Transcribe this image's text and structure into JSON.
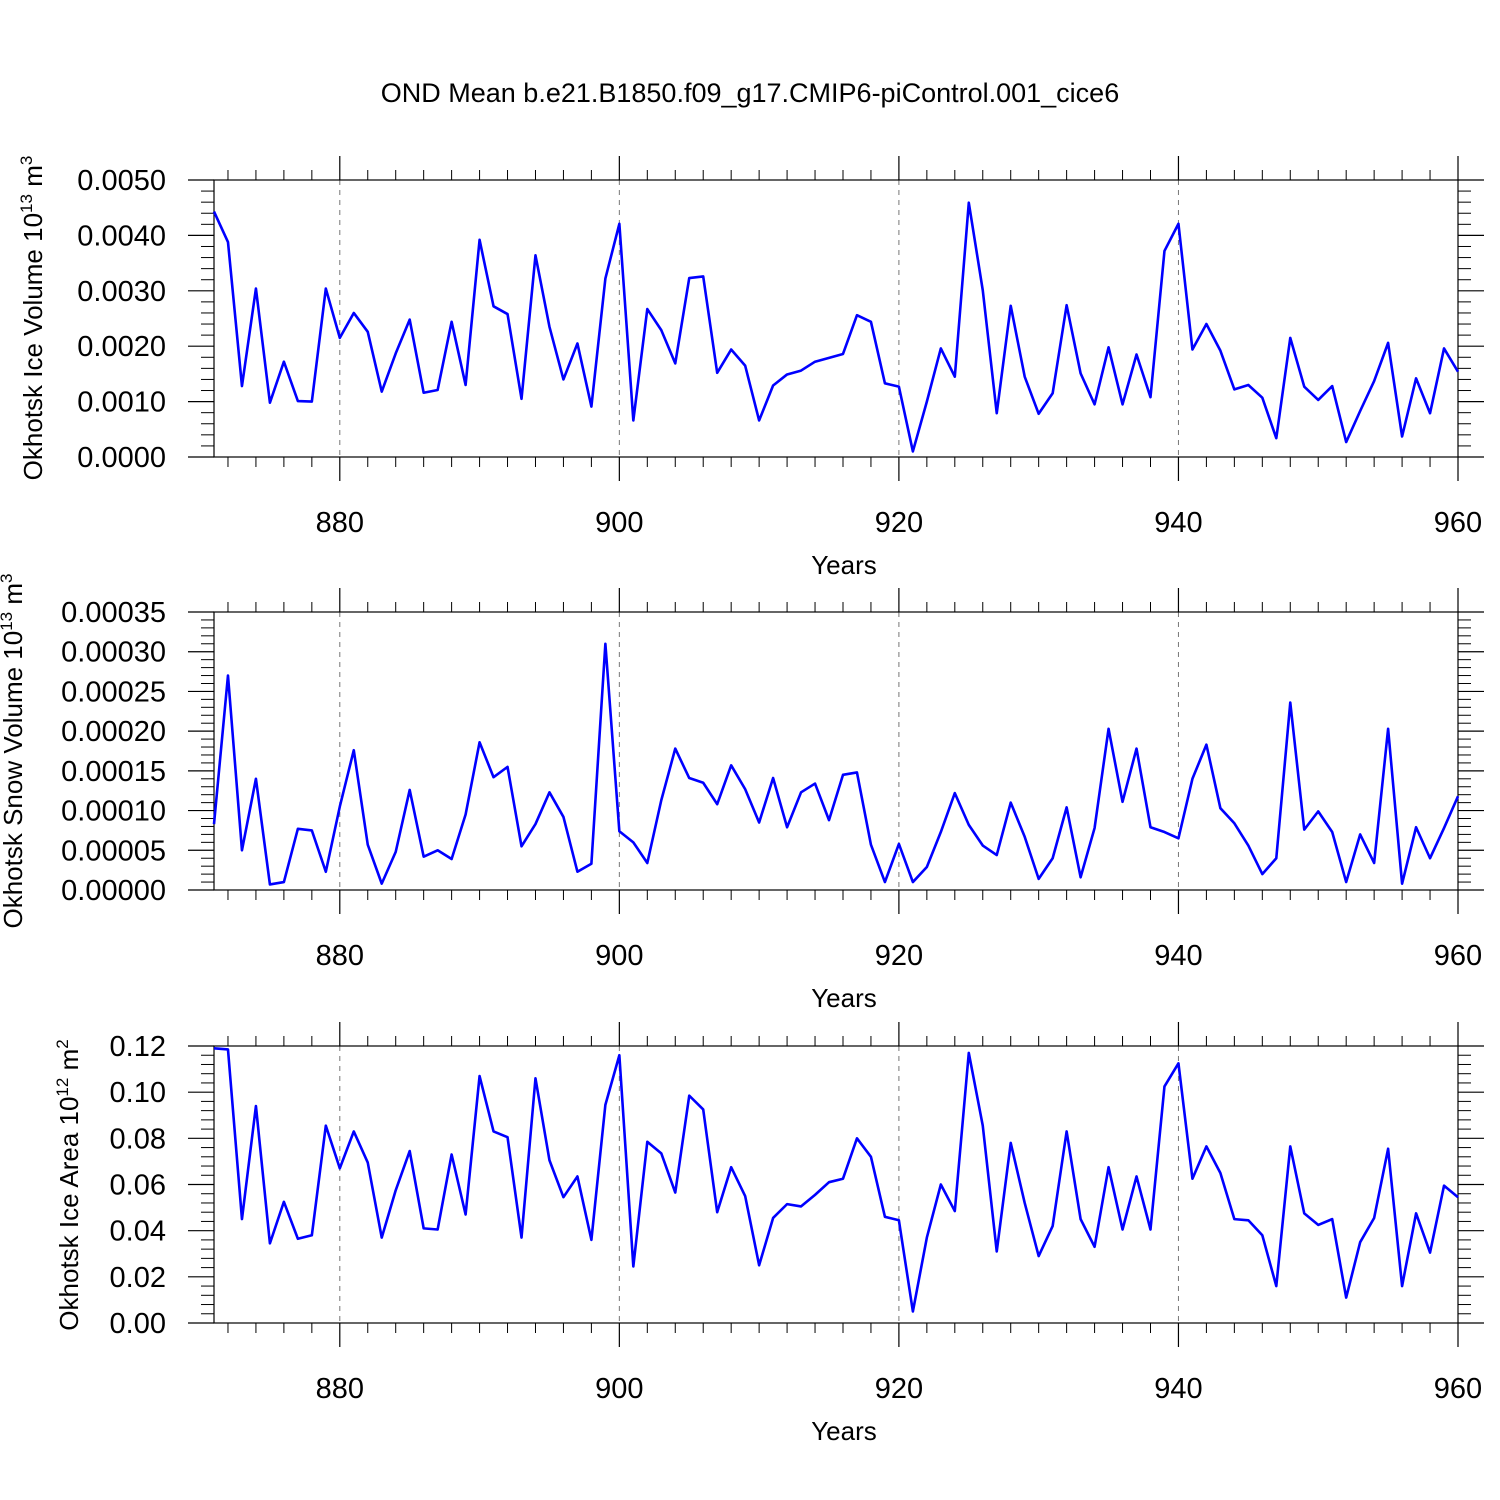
{
  "title": "OND Mean b.e21.B1850.f09_g17.CMIP6-piControl.001_cice6",
  "line_color": "#0000ff",
  "chart_data": [
    {
      "type": "line",
      "name": "ice-volume",
      "ylabel_main": "Okhotsk Ice Volume 10",
      "ylabel_exp": "13",
      "ylabel_unit": "m",
      "ylabel_unit_exp": "3",
      "xlabel": "Years",
      "xlim": [
        871,
        960
      ],
      "ylim": [
        0,
        0.005
      ],
      "xticks": [
        880,
        900,
        920,
        940,
        960
      ],
      "xtick_labels": [
        "880",
        "900",
        "920",
        "940",
        "960"
      ],
      "yticks": [
        0,
        0.001,
        0.002,
        0.003,
        0.004,
        0.005
      ],
      "ytick_labels": [
        "0.0000",
        "0.0010",
        "0.0020",
        "0.0030",
        "0.0040",
        "0.0050"
      ],
      "x_start": 871,
      "values": [
        0.00443,
        0.00388,
        0.00128,
        0.00304,
        0.00098,
        0.00172,
        0.00101,
        0.001,
        0.00304,
        0.00215,
        0.0026,
        0.00226,
        0.00118,
        0.00187,
        0.00248,
        0.00116,
        0.00121,
        0.00244,
        0.0013,
        0.00392,
        0.00272,
        0.00258,
        0.00105,
        0.00364,
        0.00235,
        0.0014,
        0.00205,
        0.00091,
        0.00322,
        0.00421,
        0.00066,
        0.00267,
        0.00229,
        0.00169,
        0.00323,
        0.00326,
        0.00152,
        0.00194,
        0.00165,
        0.00066,
        0.00129,
        0.00149,
        0.00156,
        0.00172,
        0.00179,
        0.00186,
        0.00256,
        0.00244,
        0.00133,
        0.00127,
        0.0001,
        0.001,
        0.00196,
        0.00145,
        0.00459,
        0.00301,
        0.00079,
        0.00273,
        0.00145,
        0.00078,
        0.00115,
        0.00274,
        0.00151,
        0.00095,
        0.00198,
        0.00095,
        0.00185,
        0.00108,
        0.00372,
        0.00421,
        0.00194,
        0.0024,
        0.00192,
        0.00122,
        0.0013,
        0.00107,
        0.00034,
        0.00215,
        0.00127,
        0.00103,
        0.00128,
        0.00027,
        0.00083,
        0.00137,
        0.00206,
        0.00037,
        0.00142,
        0.00079,
        0.00196,
        0.00154
      ]
    },
    {
      "type": "line",
      "name": "snow-volume",
      "ylabel_main": "Okhotsk Snow Volume 10",
      "ylabel_exp": "13",
      "ylabel_unit": "m",
      "ylabel_unit_exp": "3",
      "xlabel": "Years",
      "xlim": [
        871,
        960
      ],
      "ylim": [
        0,
        0.00035
      ],
      "xticks": [
        880,
        900,
        920,
        940,
        960
      ],
      "xtick_labels": [
        "880",
        "900",
        "920",
        "940",
        "960"
      ],
      "yticks": [
        0,
        5e-05,
        0.0001,
        0.00015,
        0.0002,
        0.00025,
        0.0003,
        0.00035
      ],
      "ytick_labels": [
        "0.00000",
        "0.00005",
        "0.00010",
        "0.00015",
        "0.00020",
        "0.00025",
        "0.00030",
        "0.00035"
      ],
      "x_start": 871,
      "values": [
        8.3e-05,
        0.00027,
        5e-05,
        0.00014,
        7e-06,
        1e-05,
        7.7e-05,
        7.5e-05,
        2.3e-05,
        0.000105,
        0.000176,
        5.7e-05,
        8e-06,
        4.8e-05,
        0.000126,
        4.2e-05,
        5e-05,
        3.9e-05,
        9.5e-05,
        0.000186,
        0.000142,
        0.000155,
        5.5e-05,
        8.3e-05,
        0.000123,
        9.2e-05,
        2.3e-05,
        3.3e-05,
        0.00031,
        7.4e-05,
        6e-05,
        3.4e-05,
        0.000113,
        0.000178,
        0.000141,
        0.000135,
        0.000108,
        0.000157,
        0.000127,
        8.5e-05,
        0.000141,
        7.9e-05,
        0.000123,
        0.000134,
        8.8e-05,
        0.000145,
        0.000148,
        5.7e-05,
        1e-05,
        5.8e-05,
        1e-05,
        2.9e-05,
        7.3e-05,
        0.000122,
        8.2e-05,
        5.6e-05,
        4.4e-05,
        0.00011,
        6.7e-05,
        1.4e-05,
        4e-05,
        0.000104,
        1.6e-05,
        7.8e-05,
        0.000203,
        0.000111,
        0.000178,
        7.9e-05,
        7.3e-05,
        6.5e-05,
        0.00014,
        0.000183,
        0.000103,
        8.4e-05,
        5.6e-05,
        2e-05,
        4e-05,
        0.000236,
        7.6e-05,
        9.9e-05,
        7.3e-05,
        1e-05,
        7e-05,
        3.4e-05,
        0.000203,
        8e-06,
        7.9e-05,
        4e-05,
        7.8e-05,
        0.000118
      ]
    },
    {
      "type": "line",
      "name": "ice-area",
      "ylabel_main": "Okhotsk Ice Area 10",
      "ylabel_exp": "12",
      "ylabel_unit": "m",
      "ylabel_unit_exp": "2",
      "xlabel": "Years",
      "xlim": [
        871,
        960
      ],
      "ylim": [
        0,
        0.12
      ],
      "xticks": [
        880,
        900,
        920,
        940,
        960
      ],
      "xtick_labels": [
        "880",
        "900",
        "920",
        "940",
        "960"
      ],
      "yticks": [
        0,
        0.02,
        0.04,
        0.06,
        0.08,
        0.1,
        0.12
      ],
      "ytick_labels": [
        "0.00",
        "0.02",
        "0.04",
        "0.06",
        "0.08",
        "0.10",
        "0.12"
      ],
      "x_start": 871,
      "values": [
        0.119,
        0.1185,
        0.045,
        0.094,
        0.0345,
        0.0525,
        0.0365,
        0.038,
        0.0855,
        0.067,
        0.083,
        0.0695,
        0.037,
        0.0575,
        0.0745,
        0.041,
        0.0405,
        0.073,
        0.047,
        0.107,
        0.083,
        0.0805,
        0.037,
        0.106,
        0.0705,
        0.0545,
        0.0635,
        0.036,
        0.0945,
        0.116,
        0.0245,
        0.0785,
        0.0735,
        0.0565,
        0.0985,
        0.0925,
        0.048,
        0.0675,
        0.055,
        0.025,
        0.0455,
        0.0515,
        0.0505,
        0.0555,
        0.061,
        0.0625,
        0.08,
        0.072,
        0.046,
        0.0445,
        0.005,
        0.037,
        0.06,
        0.0485,
        0.117,
        0.0855,
        0.031,
        0.078,
        0.052,
        0.029,
        0.042,
        0.083,
        0.045,
        0.033,
        0.0675,
        0.0405,
        0.0635,
        0.0405,
        0.1025,
        0.1125,
        0.0625,
        0.0765,
        0.065,
        0.045,
        0.0445,
        0.038,
        0.016,
        0.0765,
        0.0475,
        0.0425,
        0.045,
        0.011,
        0.035,
        0.0455,
        0.0755,
        0.016,
        0.0475,
        0.0305,
        0.0595,
        0.0545
      ]
    }
  ]
}
